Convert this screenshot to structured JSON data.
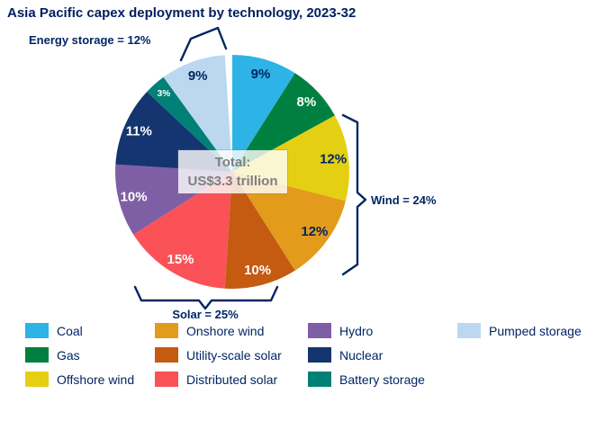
{
  "chart_data": {
    "type": "pie",
    "title": "Asia Pacific capex deployment by technology, 2023-32",
    "center_label": {
      "line1": "Total:",
      "line2": "US$3.3 trillion"
    },
    "start_angle_deg": 0,
    "direction": "clockwise",
    "legend_position": "bottom",
    "slices": [
      {
        "label": "Coal",
        "value": 9,
        "pct_label": "9%",
        "color": "#2db3e6",
        "text_color": "#002664"
      },
      {
        "label": "Gas",
        "value": 8,
        "pct_label": "8%",
        "color": "#008040",
        "text_color": "#ffffff"
      },
      {
        "label": "Offshore wind",
        "value": 12,
        "pct_label": "12%",
        "color": "#e5cf12",
        "text_color": "#002664"
      },
      {
        "label": "Onshore wind",
        "value": 12,
        "pct_label": "12%",
        "color": "#e39b1c",
        "text_color": "#002664"
      },
      {
        "label": "Utility-scale solar",
        "value": 10,
        "pct_label": "10%",
        "color": "#c55a11",
        "text_color": "#ffffff"
      },
      {
        "label": "Distributed solar",
        "value": 15,
        "pct_label": "15%",
        "color": "#fa5257",
        "text_color": "#ffffff"
      },
      {
        "label": "Hydro",
        "value": 10,
        "pct_label": "10%",
        "color": "#7e5fa5",
        "text_color": "#ffffff"
      },
      {
        "label": "Nuclear",
        "value": 11,
        "pct_label": "11%",
        "color": "#14356f",
        "text_color": "#ffffff"
      },
      {
        "label": "Battery storage",
        "value": 3,
        "pct_label": "3%",
        "color": "#008076",
        "text_color": "#ffffff"
      },
      {
        "label": "Pumped storage",
        "value": 9,
        "pct_label": "9%",
        "color": "#bcd8f0",
        "text_color": "#002664"
      }
    ],
    "annotations": [
      {
        "id": "energy_storage",
        "text": "Energy storage = 12%"
      },
      {
        "id": "wind",
        "text": "Wind = 24%"
      },
      {
        "id": "solar",
        "text": "Solar = 25%"
      }
    ]
  },
  "legend": {
    "columns": [
      [
        "Coal",
        "Gas",
        "Offshore wind"
      ],
      [
        "Onshore wind",
        "Utility-scale solar",
        "Distributed solar"
      ],
      [
        "Hydro",
        "Nuclear",
        "Battery storage"
      ],
      [
        "Pumped storage"
      ]
    ]
  },
  "colors": {
    "accent_navy": "#002664",
    "title_navy": "#002060",
    "center_text_gray": "#7f7f7f"
  }
}
